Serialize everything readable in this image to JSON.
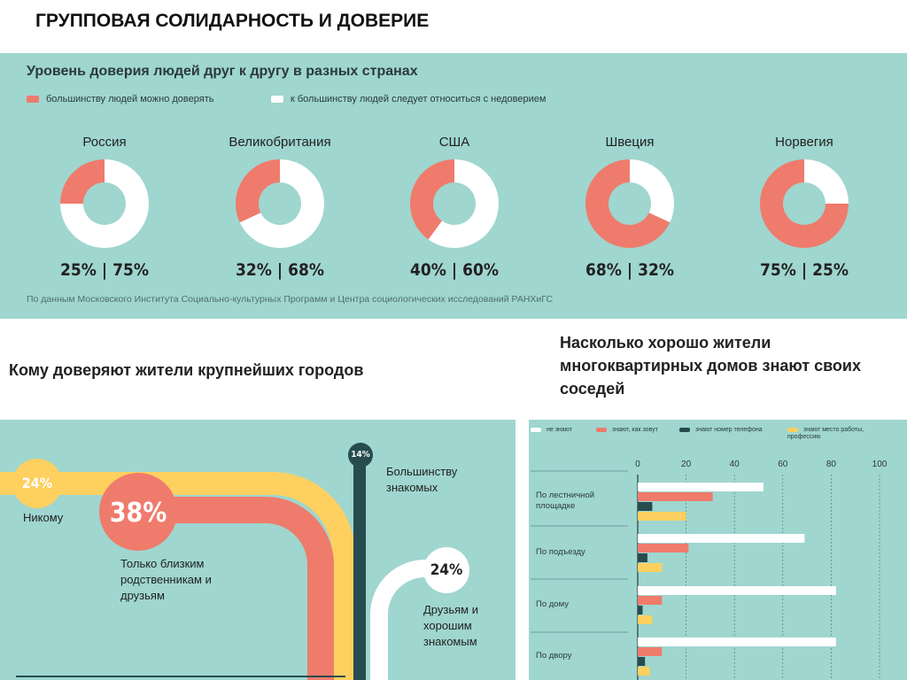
{
  "header": {
    "title": "ГРУППОВАЯ СОЛИДАРНОСТЬ И ДОВЕРИЕ"
  },
  "colors": {
    "panel": "#9fd6cf",
    "coral": "#ef7b6c",
    "white": "#ffffff",
    "yellow": "#fdd05f",
    "dark": "#264c50"
  },
  "chart_data": [
    {
      "type": "pie",
      "title": "Уровень доверия людей друг к другу в разных странах",
      "legend": [
        "большинству людей можно доверять",
        "к большинству людей следует относиться с недоверием"
      ],
      "items": [
        {
          "label": "Россия",
          "values": [
            25,
            75
          ],
          "text": "25% | 75%"
        },
        {
          "label": "Великобритания",
          "values": [
            32,
            68
          ],
          "text": "32% | 68%"
        },
        {
          "label": "США",
          "values": [
            40,
            60
          ],
          "text": "40% | 60%"
        },
        {
          "label": "Швеция",
          "values": [
            68,
            32
          ],
          "text": "68% | 32%"
        },
        {
          "label": "Норвегия",
          "values": [
            75,
            25
          ],
          "text": "75% | 25%"
        }
      ],
      "source": "По данным Московского Института Социально-культурных Программ и Центра социологических исследований РАНХиГС"
    },
    {
      "type": "bar",
      "title": "Кому доверяют жители крупнейших городов",
      "categories": [
        "Никому",
        "Только близким родственникам и друзьям",
        "Большинству знакомых",
        "Друзьям и хорошим знакомым"
      ],
      "values": [
        24,
        38,
        14,
        24
      ],
      "labels": [
        "24%",
        "38%",
        "14%",
        "24%"
      ]
    },
    {
      "type": "bar",
      "title": "Насколько хорошо жители многоквартирных домов знают своих соседей",
      "categories": [
        "По лестничной площадке",
        "По подъезду",
        "По дому",
        "По двору"
      ],
      "xticks": [
        "0",
        "20",
        "40",
        "60",
        "80",
        "100"
      ],
      "xlim": [
        0,
        100
      ],
      "series": [
        {
          "name": "не знают",
          "values": [
            52,
            69,
            82,
            82
          ]
        },
        {
          "name": "знают, как зовут",
          "values": [
            31,
            21,
            10,
            10
          ]
        },
        {
          "name": "знают номер телефона",
          "values": [
            6,
            4,
            2,
            3
          ]
        },
        {
          "name": "знают место работы, профессию",
          "values": [
            20,
            10,
            6,
            5
          ]
        }
      ]
    }
  ]
}
